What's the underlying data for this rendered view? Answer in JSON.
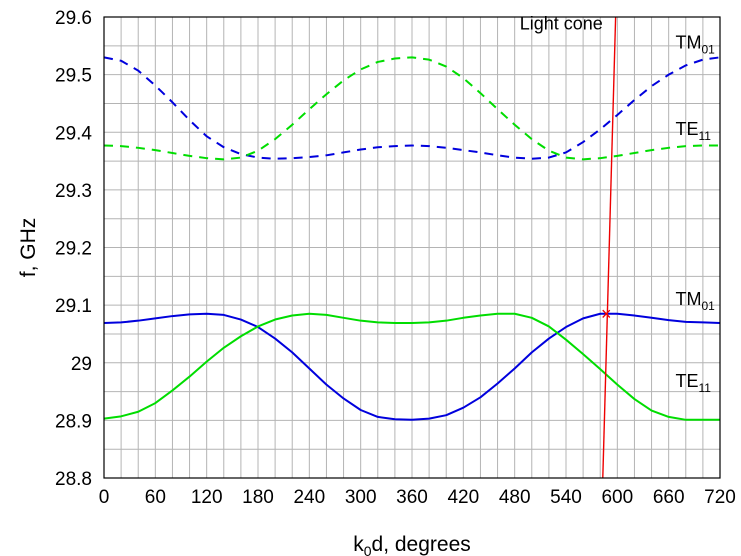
{
  "chart_data": {
    "type": "line",
    "xlabel": "k0d, degrees",
    "ylabel": "f, GHz",
    "xlim": [
      0,
      720
    ],
    "ylim": [
      28.8,
      29.6
    ],
    "grid": true,
    "x_ticks": [
      0,
      60,
      120,
      180,
      240,
      300,
      360,
      420,
      480,
      540,
      600,
      660,
      720
    ],
    "y_ticks": [
      28.8,
      28.9,
      29,
      29.1,
      29.2,
      29.3,
      29.4,
      29.5,
      29.6
    ],
    "x_tick_labels": [
      "0",
      "60",
      "120",
      "180",
      "240",
      "300",
      "360",
      "420",
      "480",
      "540",
      "600",
      "660",
      "720"
    ],
    "y_tick_labels": [
      "28.8",
      "28.9",
      "29",
      "29.1",
      "29.2",
      "29.3",
      "29.4",
      "29.5",
      "29.6"
    ],
    "series": [
      {
        "name": "TM01",
        "color": "#0000dd",
        "style": "dashed",
        "x": [
          0,
          20,
          40,
          60,
          80,
          100,
          120,
          140,
          160,
          180,
          200,
          220,
          240,
          260,
          280,
          300,
          320,
          340,
          360,
          380,
          400,
          420,
          440,
          460,
          480,
          500,
          520,
          540,
          560,
          580,
          600,
          620,
          640,
          660,
          680,
          700,
          720
        ],
        "y": [
          29.53,
          29.524,
          29.507,
          29.481,
          29.452,
          29.421,
          29.393,
          29.374,
          29.362,
          29.356,
          29.354,
          29.355,
          29.357,
          29.36,
          29.365,
          29.37,
          29.374,
          29.376,
          29.377,
          29.376,
          29.373,
          29.369,
          29.365,
          29.36,
          29.356,
          29.354,
          29.356,
          29.365,
          29.383,
          29.405,
          29.43,
          29.456,
          29.48,
          29.5,
          29.516,
          29.526,
          29.53
        ]
      },
      {
        "name": "TE11",
        "color": "#00dd00",
        "style": "dashed",
        "x": [
          0,
          20,
          40,
          60,
          80,
          100,
          120,
          140,
          160,
          180,
          200,
          220,
          240,
          260,
          280,
          300,
          320,
          340,
          360,
          380,
          400,
          420,
          440,
          460,
          480,
          500,
          520,
          540,
          560,
          580,
          600,
          620,
          640,
          660,
          680,
          700,
          720
        ],
        "y": [
          29.377,
          29.376,
          29.373,
          29.369,
          29.364,
          29.359,
          29.355,
          29.353,
          29.356,
          29.368,
          29.388,
          29.413,
          29.44,
          29.466,
          29.49,
          29.509,
          29.522,
          29.528,
          29.53,
          29.526,
          29.514,
          29.494,
          29.468,
          29.44,
          29.413,
          29.388,
          29.368,
          29.356,
          29.353,
          29.355,
          29.359,
          29.364,
          29.369,
          29.373,
          29.376,
          29.377,
          29.377
        ]
      },
      {
        "name": "TM01",
        "color": "#0000dd",
        "style": "solid",
        "x": [
          0,
          20,
          40,
          60,
          80,
          100,
          120,
          140,
          160,
          180,
          200,
          220,
          240,
          260,
          280,
          300,
          320,
          340,
          360,
          380,
          400,
          420,
          440,
          460,
          480,
          500,
          520,
          540,
          560,
          580,
          600,
          620,
          640,
          660,
          680,
          700,
          720
        ],
        "y": [
          29.069,
          29.07,
          29.073,
          29.077,
          29.081,
          29.084,
          29.085,
          29.083,
          29.075,
          29.062,
          29.042,
          29.018,
          28.99,
          28.962,
          28.938,
          28.918,
          28.906,
          28.902,
          28.901,
          28.903,
          28.909,
          28.922,
          28.94,
          28.964,
          28.99,
          29.018,
          29.042,
          29.062,
          29.077,
          29.085,
          29.085,
          29.082,
          29.078,
          29.074,
          29.071,
          29.07,
          29.069
        ]
      },
      {
        "name": "TE11",
        "color": "#00dd00",
        "style": "solid",
        "x": [
          0,
          20,
          40,
          60,
          80,
          100,
          120,
          140,
          160,
          180,
          200,
          220,
          240,
          260,
          280,
          300,
          320,
          340,
          360,
          380,
          400,
          420,
          440,
          460,
          480,
          500,
          520,
          540,
          560,
          580,
          600,
          620,
          640,
          660,
          680,
          700,
          720
        ],
        "y": [
          28.903,
          28.907,
          28.915,
          28.93,
          28.952,
          28.976,
          29.002,
          29.026,
          29.046,
          29.063,
          29.075,
          29.082,
          29.085,
          29.083,
          29.078,
          29.073,
          29.07,
          29.069,
          29.069,
          29.07,
          29.073,
          29.078,
          29.082,
          29.085,
          29.085,
          29.078,
          29.063,
          29.04,
          29.015,
          28.989,
          28.962,
          28.937,
          28.917,
          28.906,
          28.901,
          28.901,
          28.901
        ]
      },
      {
        "name": "Light cone",
        "color": "#ee0000",
        "style": "solid",
        "x": [
          583,
          598
        ],
        "y": [
          28.8,
          29.6
        ]
      }
    ],
    "marker": {
      "x": 587,
      "y": 29.085,
      "symbol": "×",
      "color": "#ee0000"
    },
    "annotations": [
      {
        "text": "Light cone",
        "x": 583,
        "y": 29.578,
        "anchor": "end"
      },
      {
        "main": "TM",
        "sub": "01",
        "x": 668,
        "y": 29.545
      },
      {
        "main": "TE",
        "sub": "11",
        "x": 668,
        "y": 29.395
      },
      {
        "main": "TM",
        "sub": "01",
        "x": 668,
        "y": 29.1
      },
      {
        "main": "TE",
        "sub": "11",
        "x": 668,
        "y": 28.958
      }
    ],
    "x_label": {
      "main": "k",
      "sub": "0",
      "rest": "d, degrees"
    }
  }
}
